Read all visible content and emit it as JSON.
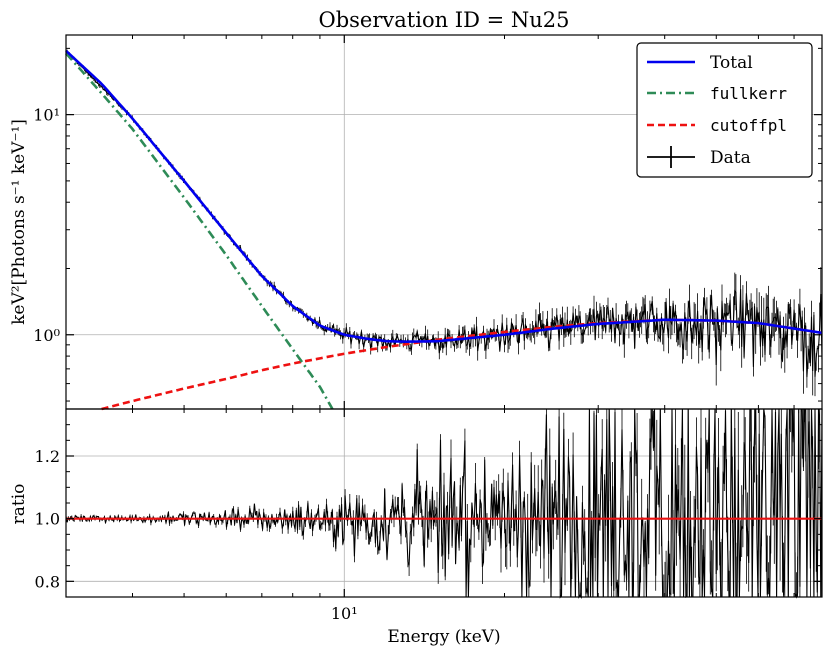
{
  "chart_data": [
    {
      "type": "line",
      "title": "Observation ID = Nu25",
      "xlabel": "Energy (keV)",
      "ylabel": "keV²[Photons s⁻¹ keV⁻¹]",
      "xscale": "log",
      "yscale": "log",
      "xlim": [
        3.0,
        79.0
      ],
      "ylim": [
        0.46,
        23.0
      ],
      "yticks": [
        {
          "value": 1.0,
          "label": "10⁰"
        },
        {
          "value": 10.0,
          "label": "10¹"
        }
      ],
      "legend_position": "top-right",
      "series": [
        {
          "name": "Total",
          "style": "solid",
          "color": "#0000ee",
          "x": [
            3.0,
            3.5,
            4.0,
            5.0,
            6.0,
            7.0,
            8.0,
            9.0,
            10.0,
            11.0,
            12.0,
            13.0,
            15.0,
            20.0,
            25.0,
            30.0,
            40.0,
            50.0,
            60.0,
            79.0
          ],
          "y": [
            19.5,
            13.8,
            9.6,
            5.0,
            2.9,
            1.85,
            1.35,
            1.1,
            1.0,
            0.96,
            0.935,
            0.93,
            0.935,
            1.0,
            1.07,
            1.12,
            1.17,
            1.16,
            1.13,
            1.02
          ]
        },
        {
          "name": "fullkerr",
          "style": "dashdot",
          "color": "#2e8b57",
          "x": [
            3.0,
            3.5,
            4.0,
            5.0,
            6.0,
            7.0,
            8.0,
            9.0,
            9.5
          ],
          "y": [
            19.0,
            12.5,
            8.6,
            4.2,
            2.3,
            1.35,
            0.86,
            0.58,
            0.46
          ]
        },
        {
          "name": "cutoffpl",
          "style": "dashed",
          "color": "#ee1111",
          "x": [
            3.5,
            4.0,
            5.0,
            6.0,
            7.0,
            8.0,
            10.0,
            12.0,
            15.0,
            20.0,
            25.0,
            30.0,
            40.0,
            50.0,
            60.0,
            79.0
          ],
          "y": [
            0.46,
            0.5,
            0.57,
            0.63,
            0.69,
            0.74,
            0.82,
            0.88,
            0.95,
            1.03,
            1.09,
            1.13,
            1.17,
            1.16,
            1.13,
            1.02
          ]
        },
        {
          "name": "Data",
          "style": "errorbar",
          "color": "#000000",
          "x": [
            3.0,
            4.0,
            5.0,
            6.0,
            7.0,
            8.0,
            9.0,
            10.0,
            12.0,
            15.0,
            20.0,
            25.0,
            30.0,
            40.0,
            50.0,
            60.0,
            70.0,
            79.0
          ],
          "y": [
            19.5,
            9.6,
            5.0,
            2.9,
            1.85,
            1.35,
            1.1,
            1.0,
            0.93,
            0.94,
            1.0,
            1.07,
            1.12,
            1.17,
            1.16,
            1.13,
            1.08,
            1.02
          ],
          "scatter": [
            0.01,
            0.012,
            0.015,
            0.02,
            0.025,
            0.035,
            0.045,
            0.06,
            0.08,
            0.11,
            0.14,
            0.18,
            0.22,
            0.28,
            0.32,
            0.36,
            0.4,
            0.42
          ]
        }
      ]
    },
    {
      "type": "line",
      "xlabel": "Energy (keV)",
      "ylabel": "ratio",
      "xscale": "log",
      "xlim": [
        3.0,
        79.0
      ],
      "ylim": [
        0.75,
        1.35
      ],
      "xticks": [
        {
          "value": 10.0,
          "label": "10¹"
        }
      ],
      "yticks": [
        {
          "value": 0.8,
          "label": "0.8"
        },
        {
          "value": 1.0,
          "label": "1.0"
        },
        {
          "value": 1.2,
          "label": "1.2"
        }
      ],
      "series": [
        {
          "name": "ratio-data",
          "style": "errorbar",
          "color": "#000000",
          "x": [
            3.0,
            4.0,
            5.0,
            6.0,
            7.0,
            8.0,
            9.0,
            10.0,
            12.0,
            15.0,
            20.0,
            30.0,
            40.0,
            50.0,
            60.0,
            79.0
          ],
          "scatter": [
            0.008,
            0.012,
            0.02,
            0.03,
            0.04,
            0.05,
            0.06,
            0.08,
            0.12,
            0.18,
            0.26,
            0.4,
            0.55,
            0.65,
            0.7,
            0.75
          ]
        },
        {
          "name": "unity",
          "style": "solid",
          "color": "#ee1111",
          "y": 1.0
        }
      ]
    }
  ]
}
